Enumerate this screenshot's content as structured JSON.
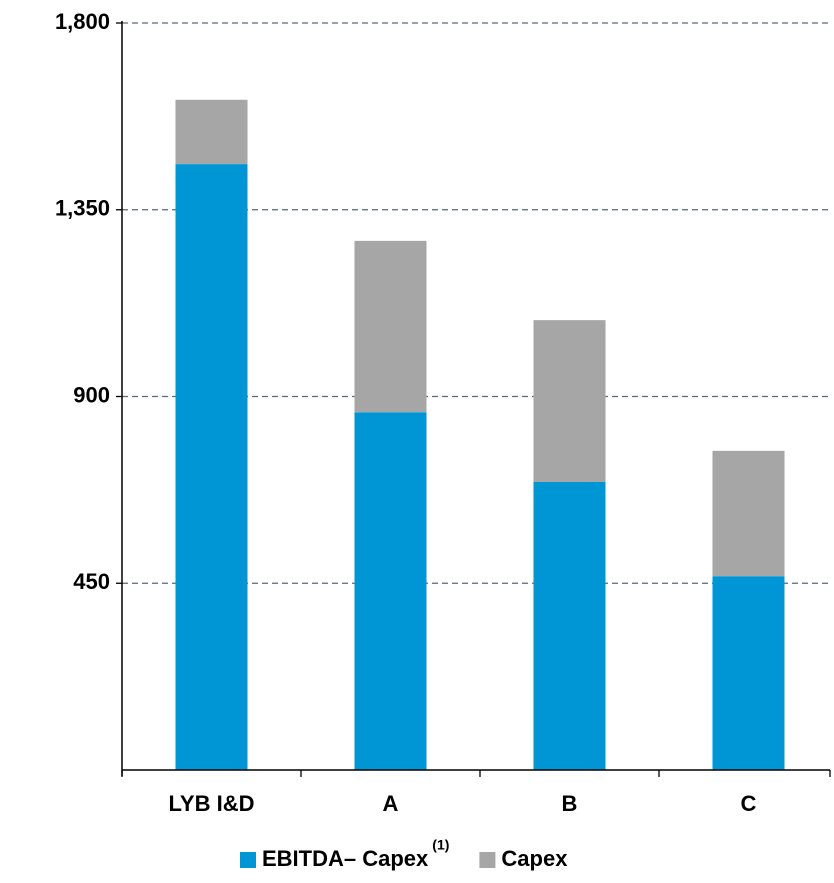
{
  "chart_data": {
    "type": "stacked_bar",
    "categories": [
      "LYB I&D",
      "A",
      "B",
      "C"
    ],
    "series": [
      {
        "name": "EBITDA– Capex",
        "superscript": "(1)",
        "color": "#0096d6",
        "values": [
          1460,
          862,
          694,
          467
        ]
      },
      {
        "name": "Capex",
        "color": "#a6a6a6",
        "values": [
          155,
          413,
          390,
          302
        ]
      }
    ],
    "ylim": [
      0,
      1800
    ],
    "yticks": [
      {
        "value": 450,
        "label": "450"
      },
      {
        "value": 900,
        "label": "900"
      },
      {
        "value": 1350,
        "label": "1,350"
      },
      {
        "value": 1800,
        "label": "1,800"
      }
    ],
    "grid": true
  }
}
